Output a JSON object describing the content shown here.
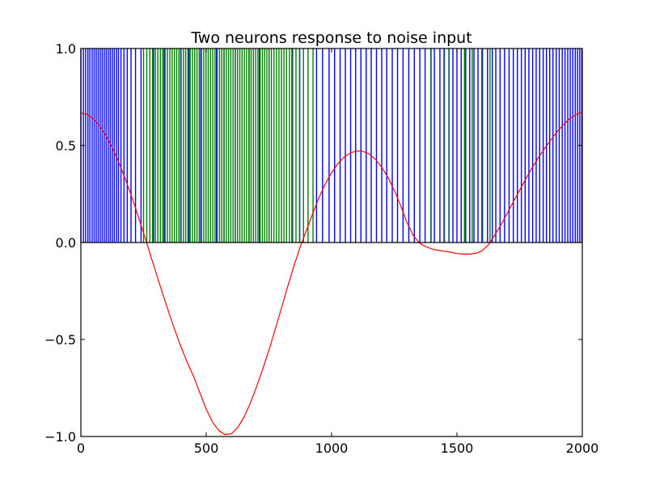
{
  "chart_data": {
    "type": "line",
    "title": "Two neurons response to noise input",
    "xlabel": "",
    "ylabel": "",
    "xlim": [
      0,
      2000
    ],
    "ylim": [
      -1.0,
      1.0
    ],
    "x_ticks": [
      0,
      500,
      1000,
      1500,
      2000
    ],
    "x_tick_labels": [
      "0",
      "500",
      "1000",
      "1500",
      "2000"
    ],
    "y_ticks": [
      1.0,
      0.5,
      0.0,
      -0.5,
      -1.0
    ],
    "y_tick_labels": [
      "1.0",
      "0.5",
      "0.0",
      "−0.5",
      "−1.0"
    ],
    "grid": false,
    "series": [
      {
        "kind": "spikes",
        "color": "#0000ff",
        "y_range": [
          0,
          1
        ],
        "x": [
          0,
          10,
          19,
          28,
          36,
          45,
          53,
          61,
          69,
          77,
          85,
          93,
          101,
          109,
          117,
          125,
          133,
          142,
          150,
          160,
          172,
          185,
          200,
          218,
          240,
          290,
          332,
          398,
          431,
          478,
          541,
          571,
          616,
          671,
          712,
          751,
          842,
          873,
          940,
          964,
          990,
          1012,
          1034,
          1055,
          1076,
          1096,
          1117,
          1138,
          1158,
          1179,
          1200,
          1220,
          1242,
          1263,
          1285,
          1308,
          1330,
          1352,
          1373,
          1396,
          1410,
          1432,
          1450,
          1468,
          1484,
          1500,
          1517,
          1535,
          1551,
          1568,
          1584,
          1602,
          1622,
          1641,
          1655,
          1672,
          1690,
          1708,
          1725,
          1741,
          1757,
          1772,
          1787,
          1802,
          1816,
          1830,
          1844,
          1857,
          1870,
          1883,
          1896,
          1908,
          1920,
          1931,
          1942,
          1952,
          1962,
          1972,
          1981,
          1990,
          1998
        ]
      },
      {
        "kind": "spikes",
        "color": "#008000",
        "y_range": [
          0,
          1
        ],
        "x": [
          250,
          263,
          275,
          286,
          297,
          307,
          317,
          326,
          336,
          345,
          355,
          364,
          373,
          382,
          391,
          400,
          409,
          418,
          427,
          436,
          445,
          454,
          463,
          472,
          481,
          490,
          499,
          508,
          517,
          526,
          535,
          544,
          553,
          562,
          571,
          580,
          589,
          598,
          607,
          616,
          625,
          634,
          643,
          652,
          661,
          670,
          679,
          688,
          697,
          706,
          715,
          724,
          733,
          742,
          751,
          760,
          770,
          780,
          790,
          800,
          810,
          820,
          832,
          845,
          858,
          872,
          888,
          906,
          926,
          1397,
          1448,
          1469,
          1530,
          1561,
          1599,
          1632
        ]
      },
      {
        "kind": "line",
        "color": "#ff0000",
        "x": [
          0,
          25,
          50,
          75,
          100,
          125,
          150,
          175,
          200,
          225,
          250,
          275,
          300,
          325,
          350,
          375,
          400,
          425,
          450,
          475,
          500,
          525,
          550,
          575,
          600,
          625,
          650,
          675,
          700,
          725,
          750,
          775,
          800,
          825,
          850,
          875,
          900,
          925,
          950,
          975,
          1000,
          1025,
          1050,
          1075,
          1100,
          1125,
          1150,
          1175,
          1200,
          1225,
          1250,
          1275,
          1300,
          1325,
          1350,
          1375,
          1400,
          1425,
          1450,
          1475,
          1500,
          1525,
          1550,
          1575,
          1600,
          1625,
          1650,
          1675,
          1700,
          1725,
          1750,
          1775,
          1800,
          1825,
          1850,
          1875,
          1900,
          1925,
          1950,
          1975,
          2000
        ],
        "y": [
          0.667,
          0.66,
          0.637,
          0.601,
          0.551,
          0.489,
          0.417,
          0.335,
          0.246,
          0.15,
          0.049,
          -0.054,
          -0.157,
          -0.259,
          -0.358,
          -0.452,
          -0.54,
          -0.62,
          -0.692,
          -0.776,
          -0.859,
          -0.926,
          -0.969,
          -0.99,
          -0.986,
          -0.955,
          -0.902,
          -0.831,
          -0.746,
          -0.654,
          -0.555,
          -0.449,
          -0.338,
          -0.227,
          -0.12,
          -0.022,
          0.064,
          0.15,
          0.232,
          0.302,
          0.36,
          0.406,
          0.44,
          0.462,
          0.472,
          0.47,
          0.456,
          0.429,
          0.388,
          0.335,
          0.269,
          0.192,
          0.105,
          0.038,
          -0.002,
          -0.021,
          -0.033,
          -0.04,
          -0.045,
          -0.05,
          -0.057,
          -0.06,
          -0.06,
          -0.056,
          -0.043,
          -0.013,
          0.036,
          0.09,
          0.149,
          0.21,
          0.27,
          0.329,
          0.385,
          0.437,
          0.485,
          0.53,
          0.572,
          0.608,
          0.638,
          0.66,
          0.672
        ]
      }
    ]
  }
}
